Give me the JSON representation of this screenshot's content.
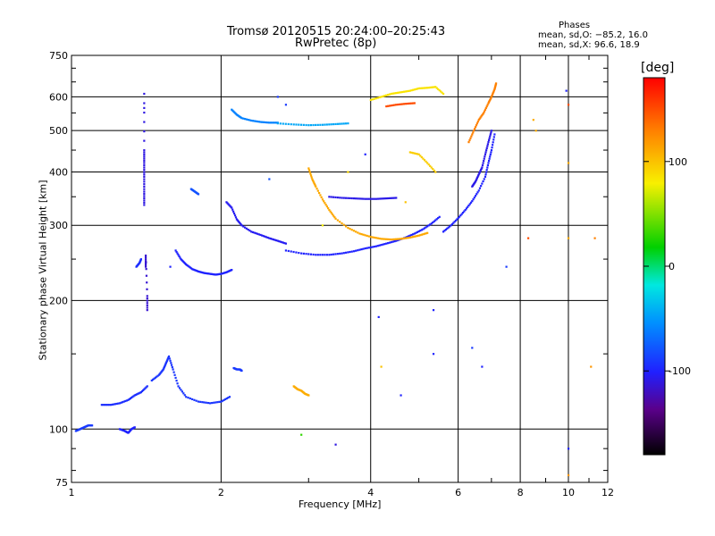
{
  "chart_data": {
    "type": "scatter",
    "title": "Tromsø 20120515 20:24:00–20:25:43",
    "subtitle": "RwPretec (8p)",
    "xlabel": "Frequency [MHz]",
    "ylabel": "Stationary phase Virtual Height [km]",
    "xscale": "log",
    "yscale": "log",
    "xlim": [
      1,
      12
    ],
    "ylim": [
      75,
      750
    ],
    "x_ticks": [
      1,
      2,
      4,
      6,
      8,
      10,
      12
    ],
    "y_ticks": [
      75,
      100,
      200,
      300,
      400,
      500,
      600,
      750
    ],
    "grid": true,
    "stats": {
      "heading": "Phases",
      "line1": "mean, sd,O: −85.2, 16.0",
      "line2": "mean, sd,X:  96.6, 18.9"
    },
    "colorbar": {
      "label": "[deg]",
      "ticks": [
        100,
        0,
        -100
      ],
      "range": [
        -180,
        180
      ]
    },
    "traces": [
      {
        "f": [
          1.02,
          1.04,
          1.06,
          1.08,
          1.1
        ],
        "h": [
          99,
          100,
          101,
          102,
          102
        ],
        "phase": -90
      },
      {
        "f": [
          1.15,
          1.2,
          1.25,
          1.3,
          1.34,
          1.38,
          1.42
        ],
        "h": [
          114,
          114,
          115,
          117,
          120,
          122,
          126
        ],
        "phase": -95
      },
      {
        "f": [
          1.45,
          1.5,
          1.53,
          1.55,
          1.57,
          1.6,
          1.64,
          1.7,
          1.8,
          1.9,
          2.0,
          2.08
        ],
        "h": [
          130,
          134,
          138,
          143,
          148,
          138,
          126,
          119,
          116,
          115,
          116,
          119
        ],
        "phase": -92
      },
      {
        "f": [
          1.25,
          1.28,
          1.3,
          1.32,
          1.34
        ],
        "h": [
          100,
          99,
          98,
          100,
          101
        ],
        "phase": -100
      },
      {
        "f": [
          2.12,
          2.15,
          2.18,
          2.2
        ],
        "h": [
          139,
          138,
          138,
          137
        ],
        "phase": -90
      },
      {
        "f": [
          2.8,
          2.85,
          2.9,
          2.95,
          3.0
        ],
        "h": [
          126,
          124,
          123,
          121,
          120
        ],
        "phase": 110
      },
      {
        "f": [
          1.4,
          1.4,
          1.4,
          1.4,
          1.4,
          1.4
        ],
        "h": [
          335,
          360,
          390,
          420,
          450,
          610
        ],
        "phase": -110
      },
      {
        "f": [
          1.41,
          1.41,
          1.42,
          1.42
        ],
        "h": [
          240,
          255,
          205,
          190
        ],
        "phase": -115
      },
      {
        "f": [
          1.35,
          1.37,
          1.38
        ],
        "h": [
          240,
          245,
          250
        ],
        "phase": -95
      },
      {
        "f": [
          1.62,
          1.66,
          1.7,
          1.75,
          1.8,
          1.85,
          1.9,
          1.95,
          2.0,
          2.05,
          2.1
        ],
        "h": [
          262,
          250,
          243,
          237,
          234,
          232,
          231,
          230,
          231,
          233,
          236
        ],
        "phase": -100
      },
      {
        "f": [
          1.74,
          1.77,
          1.8
        ],
        "h": [
          365,
          360,
          355
        ],
        "phase": -80
      },
      {
        "f": [
          2.05,
          2.1,
          2.15,
          2.2,
          2.3,
          2.4,
          2.5,
          2.6,
          2.7
        ],
        "h": [
          340,
          330,
          310,
          300,
          290,
          285,
          280,
          276,
          272
        ],
        "phase": -105
      },
      {
        "f": [
          2.1,
          2.15,
          2.2,
          2.3,
          2.4,
          2.5,
          2.6
        ],
        "h": [
          560,
          545,
          535,
          528,
          524,
          522,
          522
        ],
        "phase": -60
      },
      {
        "f": [
          2.6,
          2.8,
          3.0,
          3.2,
          3.4,
          3.6
        ],
        "h": [
          520,
          517,
          515,
          516,
          518,
          520
        ],
        "phase": -45
      },
      {
        "f": [
          2.7,
          2.9,
          3.1,
          3.3,
          3.5,
          3.7,
          3.9,
          4.1,
          4.3,
          4.5,
          4.7,
          4.9,
          5.1,
          5.3,
          5.5
        ],
        "h": [
          262,
          258,
          256,
          256,
          258,
          261,
          265,
          268,
          272,
          276,
          281,
          287,
          294,
          303,
          314
        ],
        "phase": -100
      },
      {
        "f": [
          3.0,
          3.05,
          3.1,
          3.2,
          3.3,
          3.4,
          3.6,
          3.8,
          4.0,
          4.2,
          4.4,
          4.6,
          4.8,
          5.0,
          5.2
        ],
        "h": [
          408,
          385,
          370,
          345,
          326,
          311,
          296,
          287,
          282,
          279,
          278,
          279,
          281,
          284,
          288
        ],
        "phase": 112
      },
      {
        "f": [
          3.3,
          3.5,
          3.7,
          3.9,
          4.1,
          4.3,
          4.5
        ],
        "h": [
          350,
          348,
          347,
          346,
          346,
          347,
          348
        ],
        "phase": -108
      },
      {
        "f": [
          4.8,
          5.0,
          5.2,
          5.4
        ],
        "h": [
          445,
          440,
          420,
          400
        ],
        "phase": 95
      },
      {
        "f": [
          4.0,
          4.2,
          4.4,
          4.6,
          4.8,
          5.0,
          5.2,
          5.4,
          5.6
        ],
        "h": [
          590,
          600,
          610,
          615,
          620,
          628,
          630,
          633,
          610
        ],
        "phase": 85
      },
      {
        "f": [
          4.3,
          4.5,
          4.7,
          4.9
        ],
        "h": [
          570,
          575,
          578,
          580
        ],
        "phase": 150
      },
      {
        "f": [
          6.4,
          6.5,
          6.6,
          6.7,
          6.8,
          6.9,
          7.0
        ],
        "h": [
          370,
          380,
          395,
          410,
          440,
          470,
          500
        ],
        "phase": -108
      },
      {
        "f": [
          6.3,
          6.45,
          6.6,
          6.75,
          6.9,
          7.0,
          7.1,
          7.15
        ],
        "h": [
          470,
          500,
          530,
          550,
          580,
          600,
          625,
          645
        ],
        "phase": 130
      },
      {
        "f": [
          5.6,
          5.8,
          6.0,
          6.2,
          6.4,
          6.6,
          6.8,
          6.9,
          7.0,
          7.1
        ],
        "h": [
          290,
          300,
          312,
          326,
          342,
          362,
          390,
          420,
          450,
          490
        ],
        "phase": -100
      }
    ],
    "scatter": [
      {
        "f": 1.4,
        "h": 565,
        "phase": -110
      },
      {
        "f": 1.58,
        "h": 240,
        "phase": -100
      },
      {
        "f": 2.5,
        "h": 385,
        "phase": -80
      },
      {
        "f": 2.6,
        "h": 600,
        "phase": -90
      },
      {
        "f": 2.9,
        "h": 97,
        "phase": 30
      },
      {
        "f": 3.2,
        "h": 300,
        "phase": 80
      },
      {
        "f": 3.4,
        "h": 92,
        "phase": -110
      },
      {
        "f": 3.9,
        "h": 440,
        "phase": -100
      },
      {
        "f": 4.15,
        "h": 183,
        "phase": -100
      },
      {
        "f": 4.2,
        "h": 140,
        "phase": 100
      },
      {
        "f": 4.6,
        "h": 120,
        "phase": -100
      },
      {
        "f": 4.7,
        "h": 340,
        "phase": 100
      },
      {
        "f": 5.35,
        "h": 150,
        "phase": -100
      },
      {
        "f": 5.35,
        "h": 190,
        "phase": -100
      },
      {
        "f": 6.4,
        "h": 155,
        "phase": -90
      },
      {
        "f": 6.7,
        "h": 140,
        "phase": -100
      },
      {
        "f": 7.5,
        "h": 240,
        "phase": -90
      },
      {
        "f": 8.3,
        "h": 280,
        "phase": 150
      },
      {
        "f": 8.6,
        "h": 500,
        "phase": 110
      },
      {
        "f": 8.5,
        "h": 530,
        "phase": 110
      },
      {
        "f": 9.9,
        "h": 620,
        "phase": -100
      },
      {
        "f": 10.0,
        "h": 575,
        "phase": 150
      },
      {
        "f": 10.0,
        "h": 420,
        "phase": 110
      },
      {
        "f": 10.0,
        "h": 280,
        "phase": 110
      },
      {
        "f": 10.0,
        "h": 90,
        "phase": -100
      },
      {
        "f": 10.0,
        "h": 78,
        "phase": 120
      },
      {
        "f": 11.3,
        "h": 280,
        "phase": 130
      },
      {
        "f": 11.1,
        "h": 140,
        "phase": 120
      },
      {
        "f": 2.7,
        "h": 575,
        "phase": -90
      },
      {
        "f": 3.6,
        "h": 400,
        "phase": 90
      }
    ]
  }
}
